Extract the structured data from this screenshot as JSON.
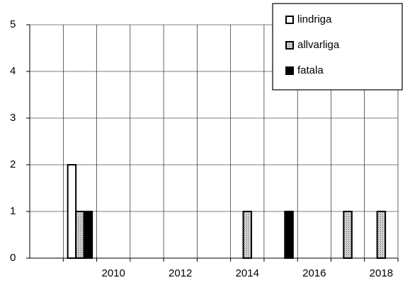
{
  "chart_data": {
    "type": "bar",
    "categories": [
      null,
      null,
      "2010",
      null,
      "2012",
      null,
      "2014",
      null,
      "2016",
      null,
      "2018"
    ],
    "series": [
      {
        "name": "lindriga",
        "color": "#ffffff",
        "values": [
          0,
          2,
          0,
          0,
          0,
          0,
          0,
          0,
          0,
          0,
          0
        ]
      },
      {
        "name": "allvarliga",
        "color": "#b8b8b8",
        "values": [
          0,
          1,
          0,
          0,
          0,
          0,
          1,
          0,
          0,
          1,
          1
        ]
      },
      {
        "name": "fatala",
        "color": "#000000",
        "values": [
          0,
          1,
          0,
          0,
          0,
          0,
          0,
          1,
          0,
          0,
          0
        ]
      }
    ],
    "ylim": [
      0,
      5
    ],
    "yticks": [
      0,
      1,
      2,
      3,
      4,
      5
    ],
    "grid": true,
    "legend": "upper right"
  }
}
